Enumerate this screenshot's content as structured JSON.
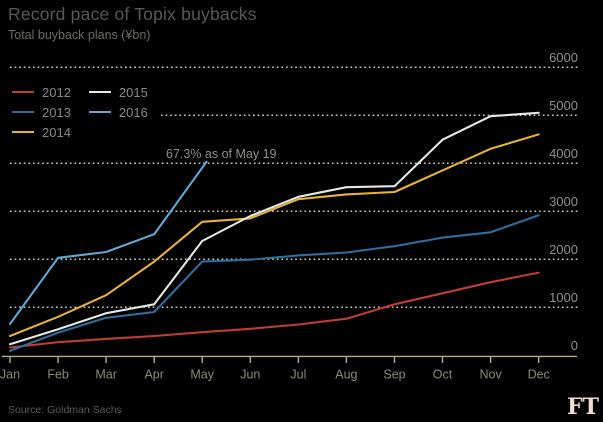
{
  "header": {
    "title": "Record pace of Topix buybacks",
    "subtitle": "Total buyback plans (¥bn)"
  },
  "footer": {
    "source": "Source: Goldman Sachs",
    "logo": "FT"
  },
  "chart_data": {
    "type": "line",
    "title": "Record pace of Topix buybacks",
    "subtitle": "Total buyback plans (¥bn)",
    "x_categories": [
      "Jan",
      "Feb",
      "Mar",
      "Apr",
      "May",
      "Jun",
      "Jul",
      "Aug",
      "Sep",
      "Oct",
      "Nov",
      "Dec"
    ],
    "ylim": [
      0,
      6000
    ],
    "y_ticks": [
      0,
      1000,
      2000,
      3000,
      4000,
      5000,
      6000
    ],
    "grid": "horizontal dotted",
    "legend_position": "top-left",
    "annotation": {
      "text": "67.3% as of May 19",
      "series": "2016",
      "x": "May 19",
      "value": 4030
    },
    "series": [
      {
        "name": "2012",
        "color": "#c13d33",
        "values": [
          160,
          270,
          340,
          400,
          480,
          550,
          640,
          760,
          1060,
          1290,
          1520,
          1720
        ]
      },
      {
        "name": "2013",
        "color": "#2e6d9e",
        "values": [
          90,
          470,
          780,
          900,
          1950,
          1990,
          2080,
          2140,
          2270,
          2450,
          2560,
          2915
        ]
      },
      {
        "name": "2014",
        "color": "#e8b23a",
        "values": [
          400,
          800,
          1250,
          1950,
          2780,
          2850,
          3250,
          3350,
          3400,
          3850,
          4300,
          4600
        ]
      },
      {
        "name": "2015",
        "color": "#e3eae4",
        "values": [
          230,
          540,
          875,
          1060,
          2380,
          2900,
          3300,
          3500,
          3520,
          4490,
          4980,
          5050
        ]
      },
      {
        "name": "2016",
        "color": "#5fa8d5",
        "values": [
          650,
          2030,
          2150,
          2520,
          4030
        ],
        "x_index": [
          0,
          1,
          2,
          3,
          4.09
        ],
        "note": "data through May 19"
      }
    ],
    "source": "Source: Goldman Sachs"
  }
}
